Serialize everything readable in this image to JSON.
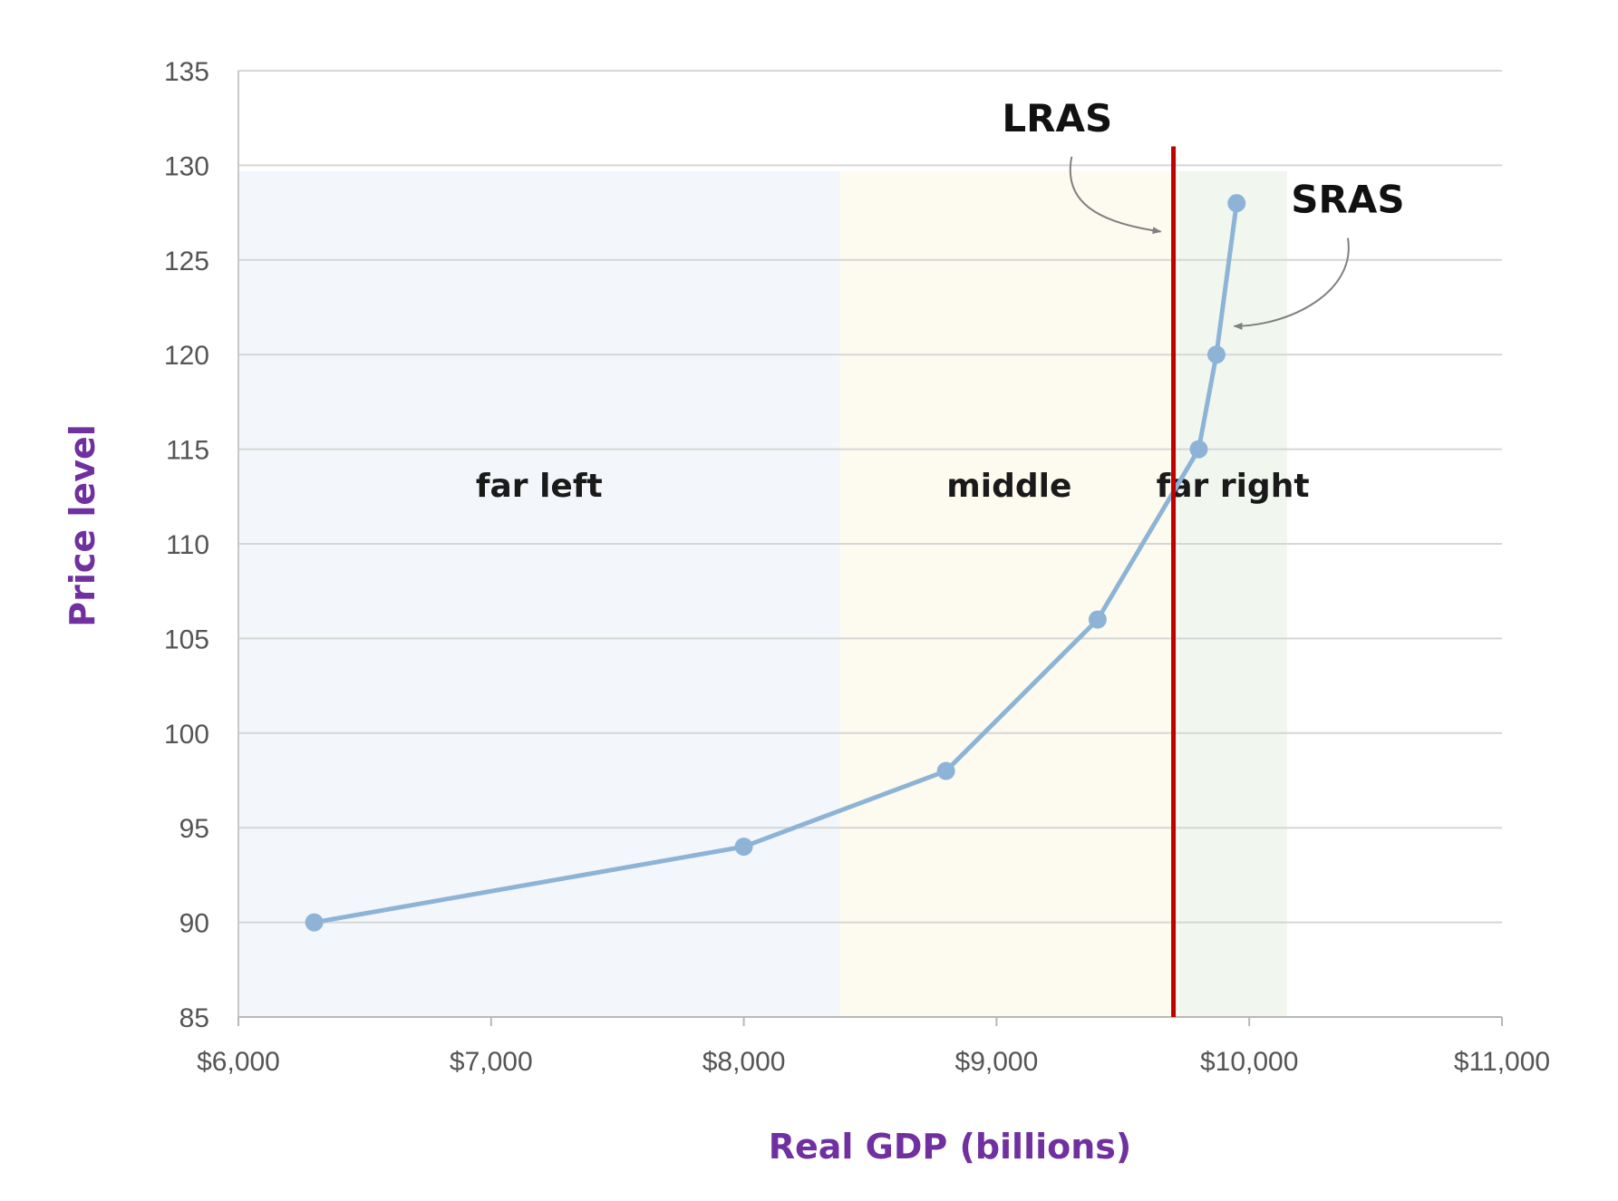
{
  "chart_data": {
    "type": "line",
    "xlabel": "Real GDP (billions)",
    "ylabel": "Price level",
    "xlim": [
      6000,
      11000
    ],
    "ylim": [
      85,
      135
    ],
    "x_ticks": [
      {
        "value": 6000,
        "label": "$6,000"
      },
      {
        "value": 7000,
        "label": "$7,000"
      },
      {
        "value": 8000,
        "label": "$8,000"
      },
      {
        "value": 9000,
        "label": "$9,000"
      },
      {
        "value": 10000,
        "label": "$10,000"
      },
      {
        "value": 11000,
        "label": "$11,000"
      }
    ],
    "y_ticks": [
      85,
      90,
      95,
      100,
      105,
      110,
      115,
      120,
      125,
      130,
      135
    ],
    "grid": "horizontal",
    "series": [
      {
        "name": "SRAS",
        "color": "#8db4d6",
        "points": [
          {
            "x": 6300,
            "y": 90
          },
          {
            "x": 8000,
            "y": 94
          },
          {
            "x": 8800,
            "y": 98
          },
          {
            "x": 9400,
            "y": 106
          },
          {
            "x": 9800,
            "y": 115
          },
          {
            "x": 9870,
            "y": 120
          },
          {
            "x": 9950,
            "y": 128
          }
        ]
      }
    ],
    "vertical_line": {
      "name": "LRAS",
      "x": 9700,
      "y_range": [
        85,
        131
      ],
      "color": "#c00000"
    },
    "regions": [
      {
        "label": "far left",
        "x_range": [
          6000,
          8380
        ],
        "y_range": [
          85,
          129.7
        ],
        "color": "#f3f7fb"
      },
      {
        "label": "middle",
        "x_range": [
          8380,
          9720
        ],
        "y_range": [
          85,
          129.7
        ],
        "color": "#fdfbef"
      },
      {
        "label": "far right",
        "x_range": [
          9720,
          10150
        ],
        "y_range": [
          85,
          129.7
        ],
        "color": "#f1f7ef"
      }
    ],
    "region_label_y": 112.5,
    "annotations": [
      {
        "text": "LRAS",
        "x": 9240,
        "y": 131.8,
        "arrow_to": {
          "x": 9650,
          "y": 126.5
        }
      },
      {
        "text": "SRAS",
        "x": 10390,
        "y": 127.5,
        "arrow_to": {
          "x": 9940,
          "y": 121.5
        }
      }
    ]
  }
}
